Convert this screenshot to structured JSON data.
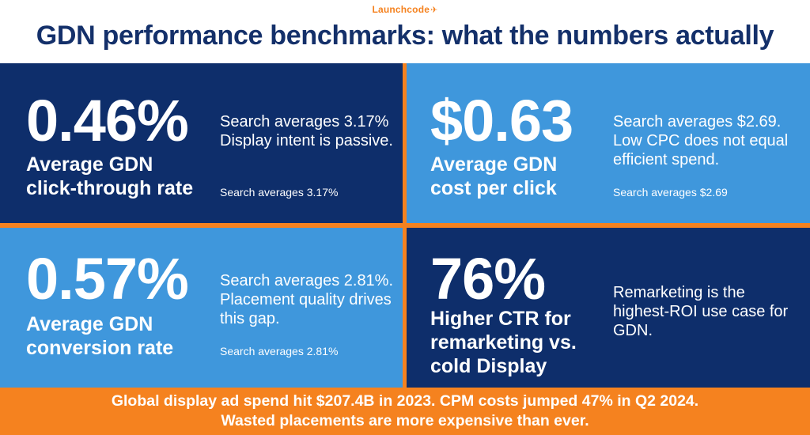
{
  "brand": {
    "logo_text": "Launchcode",
    "logo_mark": "✈"
  },
  "title": "GDN performance benchmarks: what the numbers actually mean.",
  "cards": [
    {
      "value": "0.46%",
      "label_line1": "Average GDN",
      "label_line2": "click-through rate",
      "description": "Search averages 3.17% Display intent is passive.",
      "note": "Search averages 3.17%"
    },
    {
      "value": "$0.63",
      "label_line1": "Average GDN",
      "label_line2": "cost per click",
      "description": "Search averages $2.69. Low CPC does not equal efficient spend.",
      "note": "Search averages $2.69"
    },
    {
      "value": "0.57%",
      "label_line1": "Average GDN",
      "label_line2": "conversion rate",
      "description": "Search averages 2.81%. Placement quality drives this gap.",
      "note": "Search averages 2.81%"
    },
    {
      "value": "76%",
      "label_line1": "Higher CTR for",
      "label_line2": "remarketing vs.",
      "label_line3": "cold Display",
      "description": "Remarketing is the highest-ROI use case for GDN."
    }
  ],
  "footer": {
    "line1": "Global display ad spend hit $207.4B in 2023. CPM costs jumped 47% in Q2 2024.",
    "line2": "Wasted placements are more expensive than ever."
  },
  "colors": {
    "navy": "#0e2e6b",
    "blue": "#3f97dc",
    "orange": "#f5821f",
    "title": "#14306a"
  }
}
